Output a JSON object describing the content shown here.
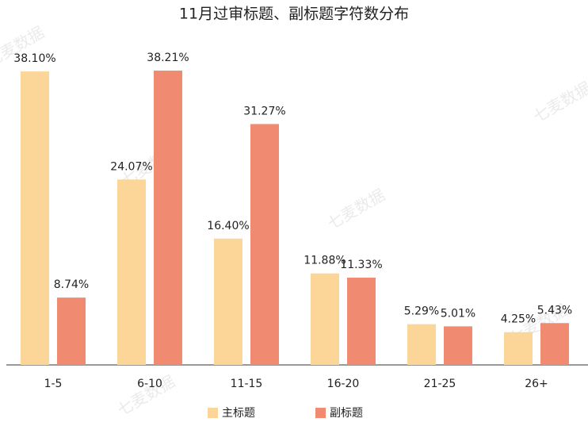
{
  "chart_data": {
    "type": "bar",
    "title": "11月过审标题、副标题字符数分布",
    "categories": [
      "1-5",
      "6-10",
      "11-15",
      "16-20",
      "21-25",
      "26+"
    ],
    "series": [
      {
        "name": "主标题",
        "color": "#fcd599",
        "values": [
          38.1,
          24.07,
          16.4,
          11.88,
          5.29,
          4.25
        ],
        "value_labels": [
          "38.10%",
          "24.07%",
          "16.40%",
          "11.88%",
          "5.29%",
          "4.25%"
        ]
      },
      {
        "name": "副标题",
        "color": "#f08a70",
        "values": [
          8.74,
          38.21,
          31.27,
          11.33,
          5.01,
          5.43
        ],
        "value_labels": [
          "8.74%",
          "38.21%",
          "31.27%",
          "11.33%",
          "5.01%",
          "5.43%"
        ]
      }
    ],
    "legend": "bottom",
    "watermark": "七麦数据"
  }
}
